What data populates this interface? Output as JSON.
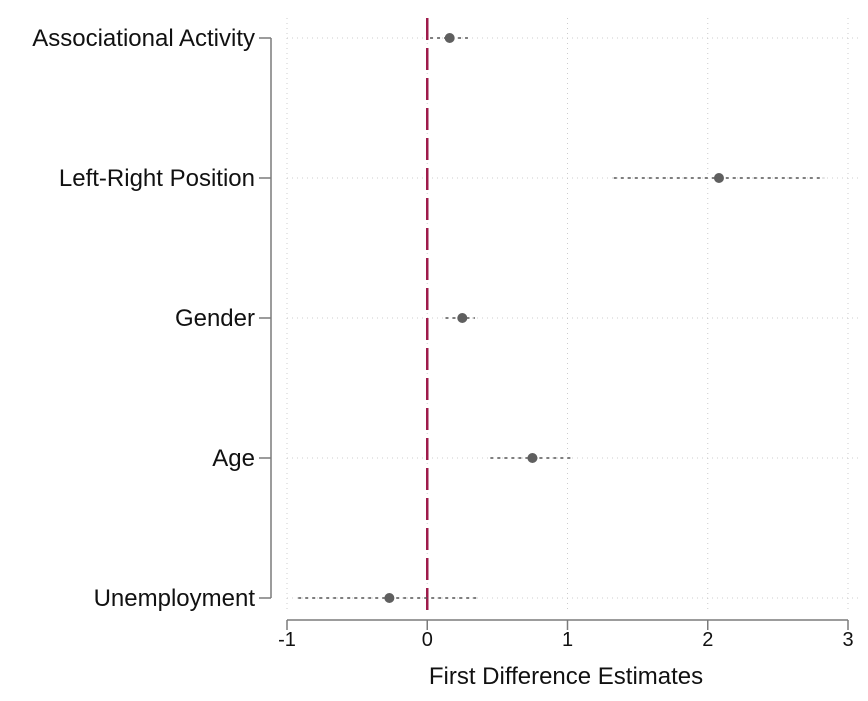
{
  "chart_data": {
    "type": "scatter",
    "title": "",
    "xlabel": "First Difference Estimates",
    "ylabel": "",
    "xlim": [
      -1,
      3
    ],
    "x_ticks": [
      -1,
      0,
      1,
      2,
      3
    ],
    "reference_line": 0,
    "grid": true,
    "categories": [
      "Associational Activity",
      "Left-Right Position",
      "Gender",
      "Age",
      "Unemployment"
    ],
    "estimates": [
      {
        "label": "Associational Activity",
        "value": 0.16,
        "ci_low": 0.02,
        "ci_high": 0.29
      },
      {
        "label": "Left-Right Position",
        "value": 2.08,
        "ci_low": 1.33,
        "ci_high": 2.83
      },
      {
        "label": "Gender",
        "value": 0.25,
        "ci_low": 0.13,
        "ci_high": 0.34
      },
      {
        "label": "Age",
        "value": 0.75,
        "ci_low": 0.45,
        "ci_high": 1.03
      },
      {
        "label": "Unemployment",
        "value": -0.27,
        "ci_low": -0.92,
        "ci_high": 0.35
      }
    ],
    "colors": {
      "point": "#5f5f5f",
      "interval": "#555555",
      "reference_line": "#9e1b4b",
      "axis": "#7b7b7b",
      "grid": "#cccccc"
    }
  }
}
